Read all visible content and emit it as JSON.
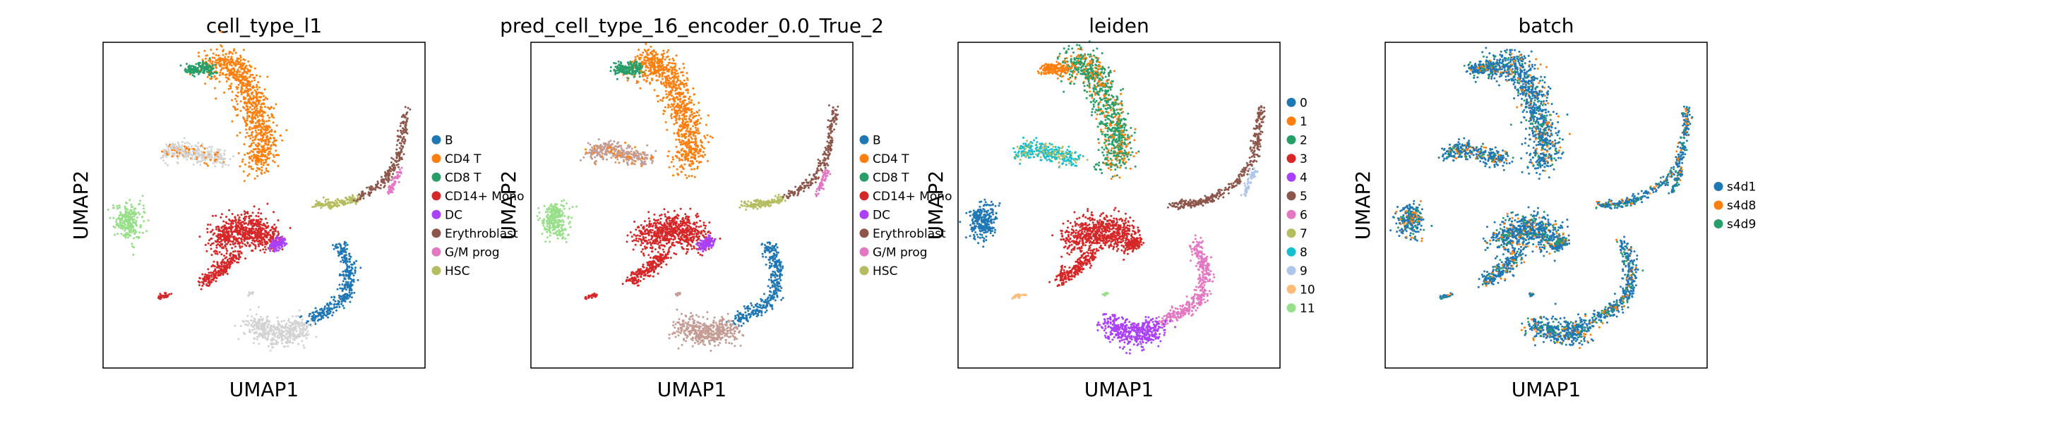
{
  "chart_data": [
    {
      "type": "scatter",
      "title": "cell_type_l1",
      "xlabel": "UMAP1",
      "ylabel": "UMAP2",
      "legend_position": "right",
      "legend": [
        {
          "label": "B",
          "color": "#1f77b4"
        },
        {
          "label": "CD4 T",
          "color": "#ff7f0e"
        },
        {
          "label": "CD8 T",
          "color": "#279e68"
        },
        {
          "label": "CD14+ Mono",
          "color": "#d62728"
        },
        {
          "label": "DC",
          "color": "#aa40fc"
        },
        {
          "label": "Erythroblast",
          "color": "#8c564b"
        },
        {
          "label": "G/M prog",
          "color": "#e377c2"
        },
        {
          "label": "HSC",
          "color": "#b5bd61"
        }
      ]
    },
    {
      "type": "scatter",
      "title": "pred_cell_type_16_encoder_0.0_True_2",
      "xlabel": "UMAP1",
      "ylabel": "UMAP2",
      "legend_position": "right",
      "legend": [
        {
          "label": "B",
          "color": "#1f77b4"
        },
        {
          "label": "CD4 T",
          "color": "#ff7f0e"
        },
        {
          "label": "CD8 T",
          "color": "#279e68"
        },
        {
          "label": "CD14+ Mono",
          "color": "#d62728"
        },
        {
          "label": "DC",
          "color": "#aa40fc"
        },
        {
          "label": "Erythroblast",
          "color": "#8c564b"
        },
        {
          "label": "G/M prog",
          "color": "#e377c2"
        },
        {
          "label": "HSC",
          "color": "#b5bd61"
        }
      ]
    },
    {
      "type": "scatter",
      "title": "leiden",
      "xlabel": "UMAP1",
      "ylabel": "UMAP2",
      "legend_position": "right",
      "legend": [
        {
          "label": "0",
          "color": "#1f77b4"
        },
        {
          "label": "1",
          "color": "#ff7f0e"
        },
        {
          "label": "2",
          "color": "#279e68"
        },
        {
          "label": "3",
          "color": "#d62728"
        },
        {
          "label": "4",
          "color": "#aa40fc"
        },
        {
          "label": "5",
          "color": "#8c564b"
        },
        {
          "label": "6",
          "color": "#e377c2"
        },
        {
          "label": "7",
          "color": "#b5bd61"
        },
        {
          "label": "8",
          "color": "#17becf"
        },
        {
          "label": "9",
          "color": "#aec7e8"
        },
        {
          "label": "10",
          "color": "#ffbb78"
        },
        {
          "label": "11",
          "color": "#98df8a"
        }
      ]
    },
    {
      "type": "scatter",
      "title": "batch",
      "xlabel": "UMAP1",
      "ylabel": "UMAP2",
      "legend_position": "right",
      "legend": [
        {
          "label": "s4d1",
          "color": "#1f77b4"
        },
        {
          "label": "s4d8",
          "color": "#ff7f0e"
        },
        {
          "label": "s4d9",
          "color": "#279e68"
        }
      ]
    }
  ],
  "colors": {
    "unlabeled": "#d3d3d3",
    "mislabel_tan": "#c49c94",
    "axis": "#000000"
  }
}
